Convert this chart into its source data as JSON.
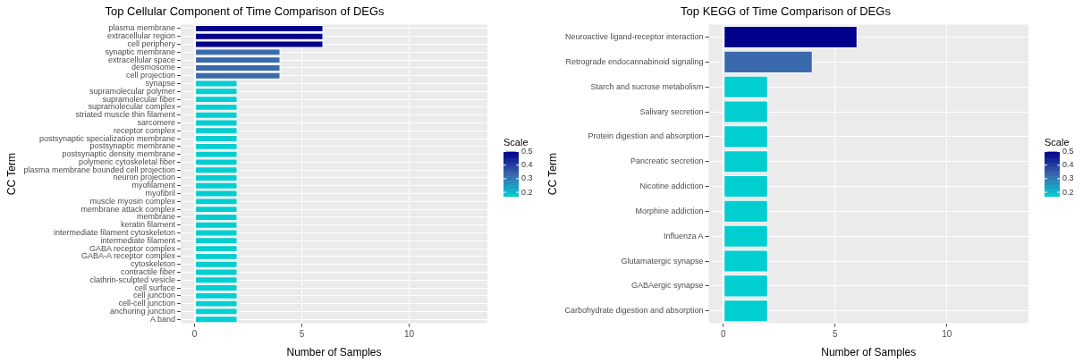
{
  "chart_data": [
    {
      "type": "bar",
      "orientation": "horizontal",
      "title": "Top Cellular Component of Time Comparison of DEGs",
      "xlabel": "Number of Samples",
      "ylabel": "CC Term",
      "clabel": "Scale",
      "clim": [
        0.17,
        0.5
      ],
      "cticks": [
        0.2,
        0.3,
        0.4,
        0.5
      ],
      "grid": true,
      "categories": [
        "plasma membrane",
        "extracellular region",
        "cell periphery",
        "synaptic membrane",
        "extracellular space",
        "desmosome",
        "cell projection",
        "synapse",
        "supramolecular polymer",
        "supramolecular fiber",
        "supramolecular complex",
        "striated muscle thin filament",
        "sarcomere",
        "receptor complex",
        "postsynaptic specialization membrane",
        "postsynaptic membrane",
        "postsynaptic density membrane",
        "polymeric cytoskeletal fiber",
        "plasma membrane bounded cell projection",
        "neuron projection",
        "myofilament",
        "myofibril",
        "muscle myosin complex",
        "membrane attack complex",
        "membrane",
        "keratin filament",
        "intermediate filament cytoskeleton",
        "intermediate filament",
        "GABA receptor complex",
        "GABA-A receptor complex",
        "cytoskeleton",
        "contractile fiber",
        "clathrin-sculpted vesicle",
        "cell surface",
        "cell junction",
        "cell-cell junction",
        "anchoring junction",
        "A band"
      ],
      "values": [
        6,
        6,
        6,
        4,
        4,
        4,
        4,
        2,
        2,
        2,
        2,
        2,
        2,
        2,
        2,
        2,
        2,
        2,
        2,
        2,
        2,
        2,
        2,
        2,
        2,
        2,
        2,
        2,
        2,
        2,
        2,
        2,
        2,
        2,
        2,
        2,
        2,
        2
      ],
      "cvalues": [
        0.5,
        0.5,
        0.5,
        0.33,
        0.33,
        0.33,
        0.33,
        0.17,
        0.17,
        0.17,
        0.17,
        0.17,
        0.17,
        0.17,
        0.17,
        0.17,
        0.17,
        0.17,
        0.17,
        0.17,
        0.17,
        0.17,
        0.17,
        0.17,
        0.17,
        0.17,
        0.17,
        0.17,
        0.17,
        0.17,
        0.17,
        0.17,
        0.17,
        0.17,
        0.17,
        0.17,
        0.17,
        0.17
      ],
      "colors": [
        "#00008b",
        "#00008b",
        "#00008b",
        "#3a6aad",
        "#3a6aad",
        "#3a6aad",
        "#3a6aad",
        "#00ced1",
        "#00ced1",
        "#00ced1",
        "#00ced1",
        "#00ced1",
        "#00ced1",
        "#00ced1",
        "#00ced1",
        "#00ced1",
        "#00ced1",
        "#00ced1",
        "#00ced1",
        "#00ced1",
        "#00ced1",
        "#00ced1",
        "#00ced1",
        "#00ced1",
        "#00ced1",
        "#00ced1",
        "#00ced1",
        "#00ced1",
        "#00ced1",
        "#00ced1",
        "#00ced1",
        "#00ced1",
        "#00ced1",
        "#00ced1",
        "#00ced1",
        "#00ced1",
        "#00ced1",
        "#00ced1"
      ],
      "xlim": [
        -0.65,
        13.65
      ],
      "xticks": [
        0,
        5,
        10
      ]
    },
    {
      "type": "bar",
      "orientation": "horizontal",
      "title": "Top KEGG of Time Comparison of DEGs",
      "xlabel": "Number of Samples",
      "ylabel": "CC Term",
      "clabel": "Scale",
      "clim": [
        0.17,
        0.5
      ],
      "cticks": [
        0.2,
        0.3,
        0.4,
        0.5
      ],
      "grid": true,
      "categories": [
        "Neuroactive ligand-receptor interaction",
        "Retrograde endocannabinoid signaling",
        "Starch and sucrose metabolism",
        "Salivary secretion",
        "Protein digestion and absorption",
        "Pancreatic secretion",
        "Nicotine addiction",
        "Morphine addiction",
        "Influenza A",
        "Glutamatergic synapse",
        "GABAergic synapse",
        "Carbohydrate digestion and absorption"
      ],
      "values": [
        6,
        4,
        2,
        2,
        2,
        2,
        2,
        2,
        2,
        2,
        2,
        2
      ],
      "cvalues": [
        0.5,
        0.33,
        0.17,
        0.17,
        0.17,
        0.17,
        0.17,
        0.17,
        0.17,
        0.17,
        0.17,
        0.17
      ],
      "colors": [
        "#00008b",
        "#3a6aad",
        "#00ced1",
        "#00ced1",
        "#00ced1",
        "#00ced1",
        "#00ced1",
        "#00ced1",
        "#00ced1",
        "#00ced1",
        "#00ced1",
        "#00ced1"
      ],
      "xlim": [
        -0.65,
        13.65
      ],
      "xticks": [
        0,
        5,
        10
      ]
    }
  ]
}
